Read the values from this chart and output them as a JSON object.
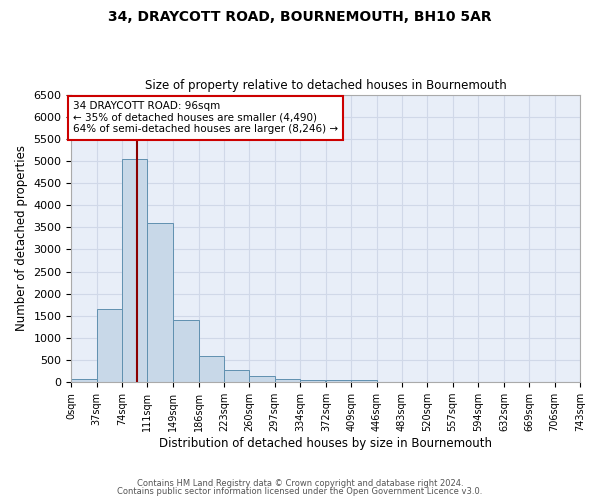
{
  "title1": "34, DRAYCOTT ROAD, BOURNEMOUTH, BH10 5AR",
  "title2": "Size of property relative to detached houses in Bournemouth",
  "xlabel": "Distribution of detached houses by size in Bournemouth",
  "ylabel": "Number of detached properties",
  "bin_edges": [
    0,
    37,
    74,
    111,
    149,
    186,
    223,
    260,
    297,
    334,
    372,
    409,
    446,
    483,
    520,
    557,
    594,
    632,
    669,
    706,
    743
  ],
  "bar_heights": [
    75,
    1650,
    5050,
    3600,
    1400,
    600,
    280,
    140,
    75,
    50,
    50,
    50,
    10,
    5,
    5,
    5,
    5,
    5,
    5,
    5
  ],
  "bar_color": "#c8d8e8",
  "bar_edge_color": "#6090b0",
  "property_size": 96,
  "vline_color": "#8b0000",
  "annotation_text": "34 DRAYCOTT ROAD: 96sqm\n← 35% of detached houses are smaller (4,490)\n64% of semi-detached houses are larger (8,246) →",
  "annotation_box_color": "#ffffff",
  "annotation_edge_color": "#cc0000",
  "ylim": [
    0,
    6500
  ],
  "yticks": [
    0,
    500,
    1000,
    1500,
    2000,
    2500,
    3000,
    3500,
    4000,
    4500,
    5000,
    5500,
    6000,
    6500
  ],
  "grid_color": "#d0d8e8",
  "background_color": "#e8eef8",
  "footer1": "Contains HM Land Registry data © Crown copyright and database right 2024.",
  "footer2": "Contains public sector information licensed under the Open Government Licence v3.0."
}
